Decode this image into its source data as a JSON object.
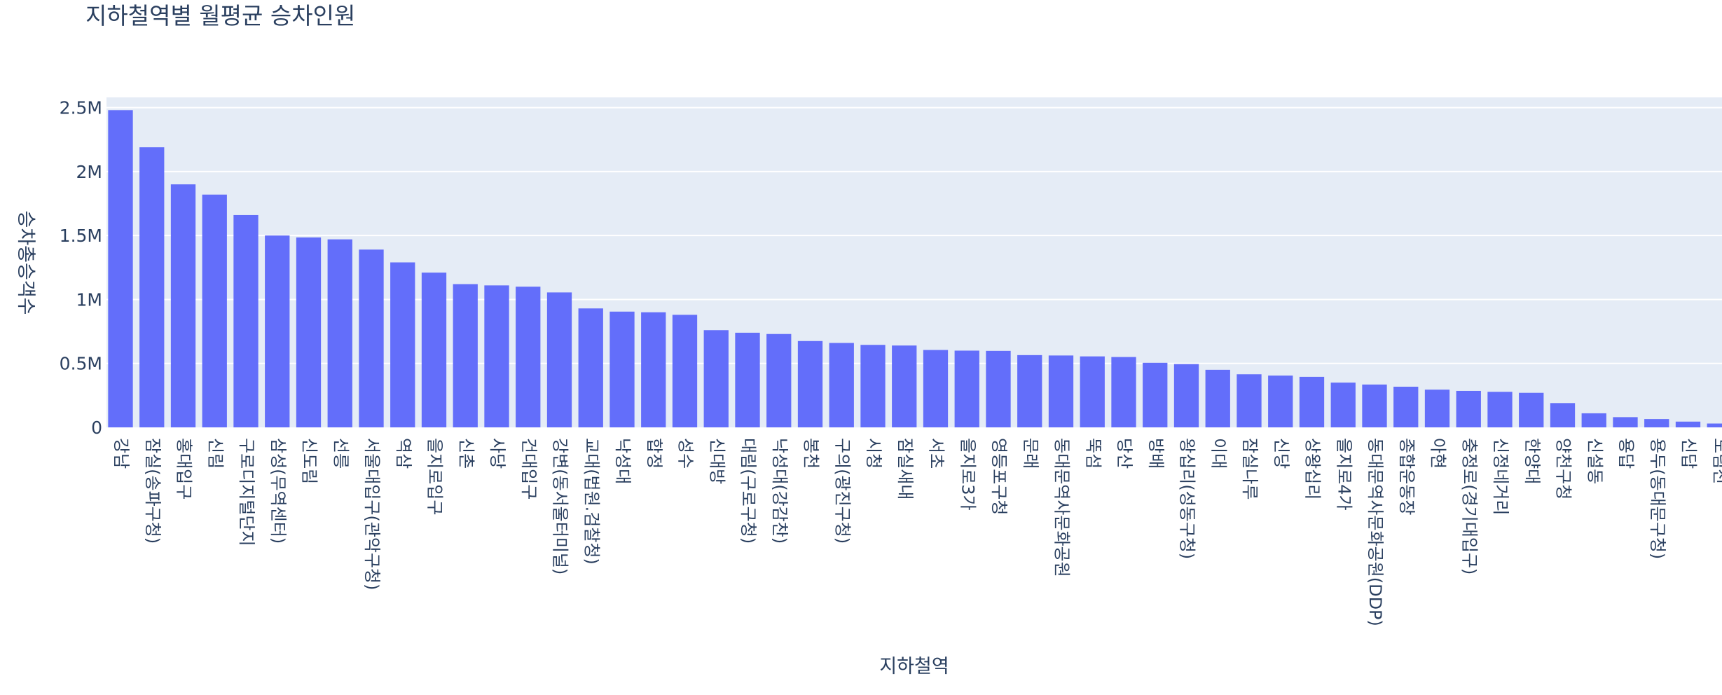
{
  "chart_data": {
    "type": "bar",
    "title": "지하철역별 월평균 승차인원",
    "xlabel": "지하철역",
    "ylabel": "승차총승객수",
    "ylim": [
      0,
      2580000
    ],
    "yticks": [
      {
        "value": 0,
        "label": "0"
      },
      {
        "value": 500000,
        "label": "0.5M"
      },
      {
        "value": 1000000,
        "label": "1M"
      },
      {
        "value": 1500000,
        "label": "1.5M"
      },
      {
        "value": 2000000,
        "label": "2M"
      },
      {
        "value": 2500000,
        "label": "2.5M"
      }
    ],
    "grid": true,
    "colors": {
      "bar": "#636efa",
      "plot_bg": "#e5ecf6",
      "grid": "#ffffff",
      "text": "#2a3f5f"
    },
    "categories": [
      "강남",
      "잠실(송파구청)",
      "홍대입구",
      "신림",
      "구로디지털단지",
      "삼성(무역센터)",
      "신도림",
      "선릉",
      "서울대입구(관악구청)",
      "역삼",
      "을지로입구",
      "신촌",
      "사당",
      "건대입구",
      "강변(동서울터미널)",
      "교대(법원.검찰청)",
      "낙성대",
      "합정",
      "성수",
      "신대방",
      "대림(구로구청)",
      "낙성대(강감찬)",
      "봉천",
      "구의(광진구청)",
      "시청",
      "잠실새내",
      "서초",
      "을지로3가",
      "영등포구청",
      "문래",
      "동대문역사문화공원",
      "뚝섬",
      "당산",
      "방배",
      "왕십리(성동구청)",
      "이대",
      "잠실나루",
      "신당",
      "상왕십리",
      "을지로4가",
      "동대문역사문화공원(DDP)",
      "종합운동장",
      "아현",
      "충정로(경기대입구)",
      "신정네거리",
      "한양대",
      "양천구청",
      "신설동",
      "용답",
      "용두(동대문구청)",
      "신답",
      "도림천"
    ],
    "values": [
      2480000,
      2190000,
      1900000,
      1820000,
      1660000,
      1500000,
      1485000,
      1470000,
      1390000,
      1290000,
      1210000,
      1120000,
      1110000,
      1100000,
      1055000,
      930000,
      905000,
      900000,
      880000,
      760000,
      740000,
      730000,
      675000,
      660000,
      645000,
      640000,
      605000,
      600000,
      598000,
      565000,
      562000,
      555000,
      550000,
      505000,
      495000,
      450000,
      415000,
      405000,
      395000,
      350000,
      335000,
      318000,
      295000,
      285000,
      278000,
      270000,
      190000,
      110000,
      80000,
      65000,
      45000,
      30000
    ]
  }
}
